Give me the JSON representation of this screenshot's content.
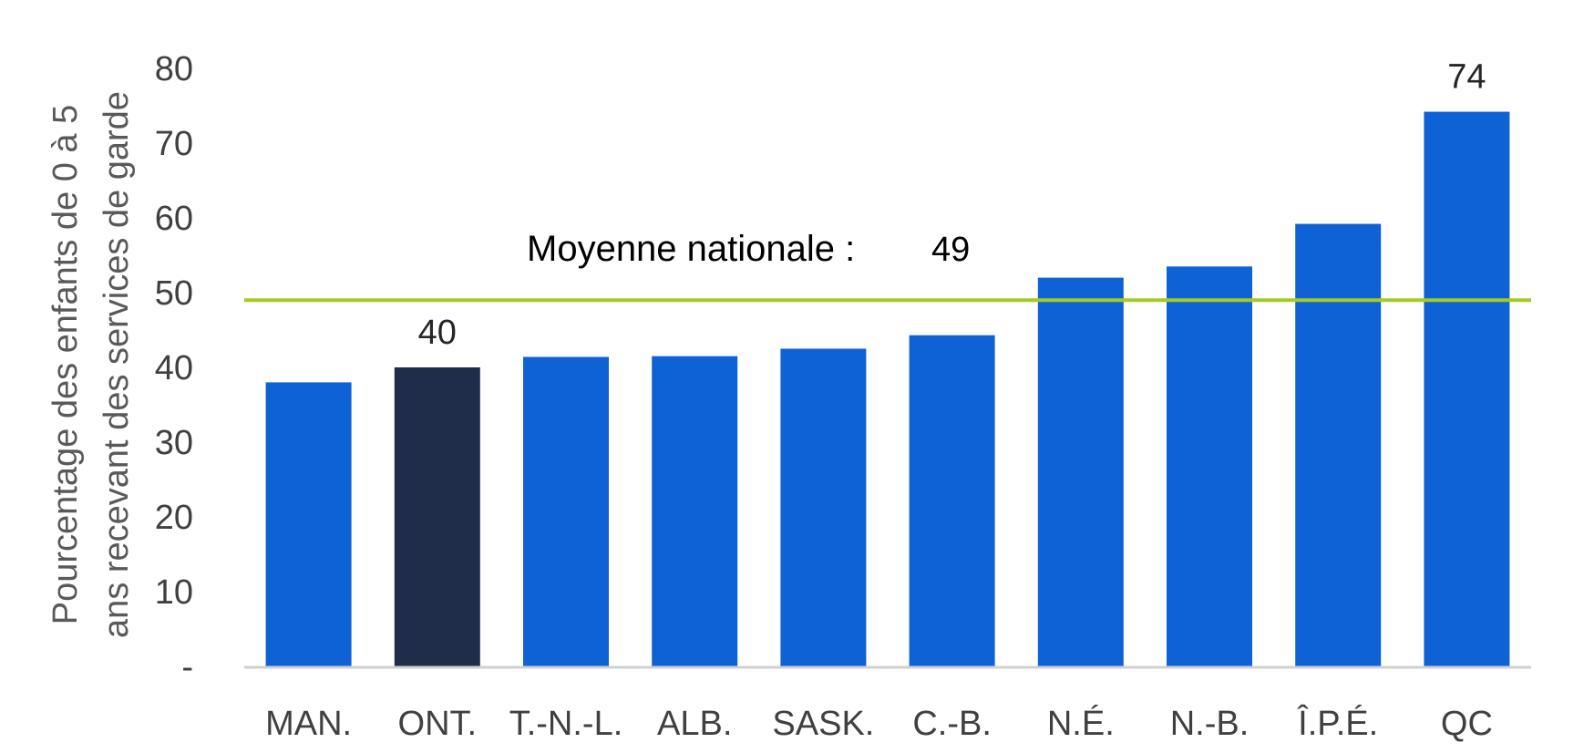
{
  "chart_data": {
    "type": "bar",
    "title": "",
    "xlabel": "",
    "ylabel_lines": [
      "Pourcentage des enfants de 0 à 5",
      "ans recevant des services de garde"
    ],
    "categories": [
      "MAN.",
      "ONT.",
      "T.-N.-L.",
      "ALB.",
      "SASK.",
      "C.-B.",
      "N.É.",
      "N.-B.",
      "Î.P.É.",
      "QC"
    ],
    "values": [
      38,
      40,
      41.4,
      41.5,
      42.5,
      44.3,
      52,
      53.5,
      59.2,
      74.2
    ],
    "ylim": [
      0,
      80
    ],
    "yticks": [
      {
        "value": 0,
        "label": "-"
      },
      {
        "value": 10,
        "label": "10"
      },
      {
        "value": 20,
        "label": "20"
      },
      {
        "value": 30,
        "label": "30"
      },
      {
        "value": 40,
        "label": "40"
      },
      {
        "value": 50,
        "label": "50"
      },
      {
        "value": 60,
        "label": "60"
      },
      {
        "value": 70,
        "label": "70"
      },
      {
        "value": 80,
        "label": "80"
      }
    ],
    "data_labels": [
      {
        "category": "ONT.",
        "text": "40"
      },
      {
        "category": "QC",
        "text": "74"
      }
    ],
    "highlight": {
      "category": "ONT.",
      "color": "#1f2d4a"
    },
    "bar_color": "#0f62d6",
    "reference_line": {
      "label": "Moyenne nationale :",
      "value_label": "49",
      "value": 49,
      "color": "#a3cc1f"
    },
    "grid": false,
    "legend": "none"
  }
}
